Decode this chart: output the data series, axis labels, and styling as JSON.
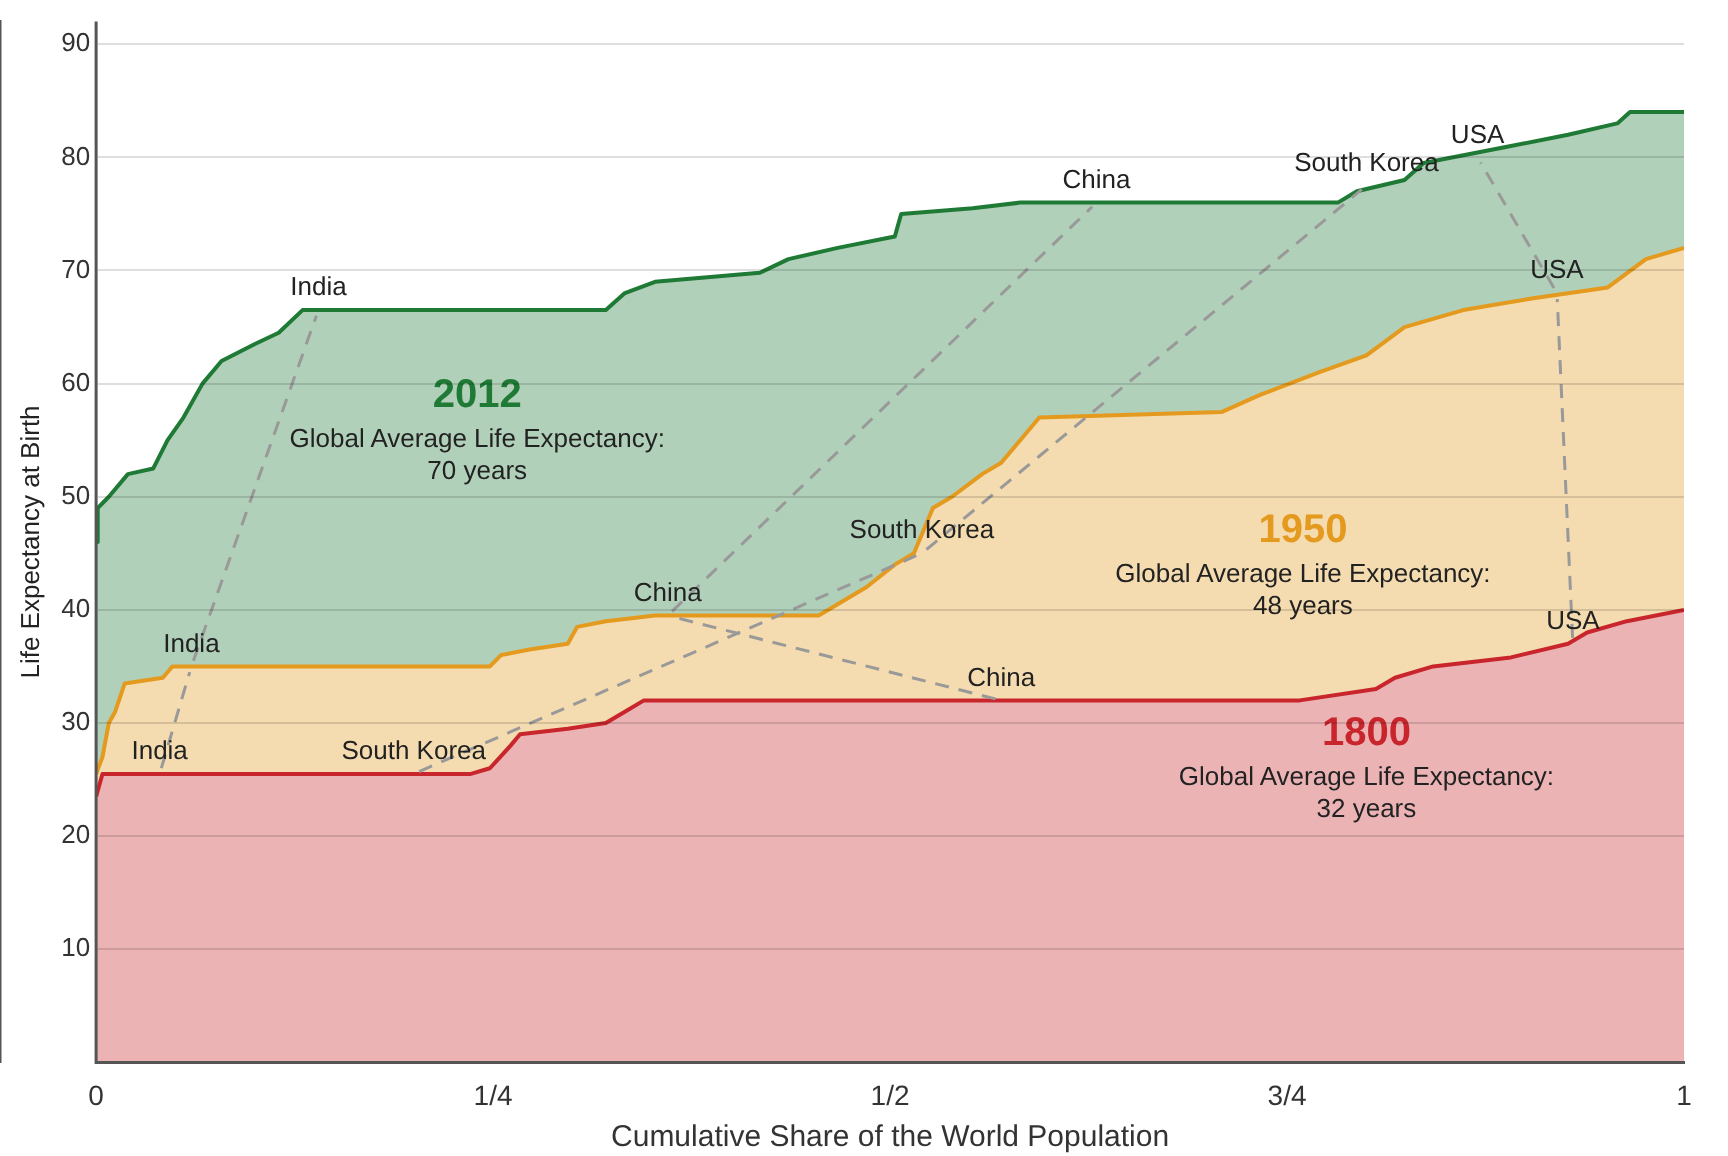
{
  "chart_data": {
    "type": "area",
    "xlabel": "Cumulative Share of the World Population",
    "ylabel": "Life Expectancy at Birth",
    "xlim": [
      0,
      1
    ],
    "xticks": [
      0,
      {
        "value": 0.25,
        "label": "1/4"
      },
      {
        "value": 0.5,
        "label": "1/2"
      },
      {
        "value": 0.75,
        "label": "3/4"
      },
      1
    ],
    "ylim": [
      0,
      92
    ],
    "yticks": [
      10,
      20,
      30,
      40,
      50,
      60,
      70,
      80,
      90
    ],
    "grid": "y",
    "line_style": "solid",
    "marker": "none",
    "series": [
      {
        "name": "2012",
        "color": "#1f7a36",
        "x": [
          0,
          0.001,
          0.008,
          0.02,
          0.036,
          0.045,
          0.055,
          0.067,
          0.079,
          0.1,
          0.115,
          0.13,
          0.321,
          0.333,
          0.352,
          0.418,
          0.436,
          0.467,
          0.503,
          0.507,
          0.552,
          0.582,
          0.782,
          0.794,
          0.824,
          0.836,
          0.891,
          0.927,
          0.958,
          0.966,
          1
        ],
        "values": [
          46,
          49,
          50,
          52,
          52.5,
          55,
          57,
          60,
          62,
          63.5,
          64.5,
          66.5,
          66.5,
          68,
          69,
          69.8,
          71,
          72,
          73,
          75,
          75.5,
          76,
          76,
          77,
          78,
          79.5,
          81,
          82,
          83,
          84,
          84
        ]
      },
      {
        "name": "1950",
        "color": "#e39a1e",
        "x": [
          0,
          0.004,
          0.008,
          0.012,
          0.018,
          0.042,
          0.048,
          0.248,
          0.255,
          0.273,
          0.297,
          0.303,
          0.321,
          0.352,
          0.455,
          0.467,
          0.485,
          0.503,
          0.515,
          0.521,
          0.527,
          0.539,
          0.558,
          0.57,
          0.582,
          0.594,
          0.709,
          0.733,
          0.77,
          0.8,
          0.824,
          0.861,
          0.903,
          0.952,
          0.976,
          1
        ],
        "values": [
          25.5,
          27,
          30,
          31,
          33.5,
          34,
          35,
          35,
          36,
          36.5,
          37,
          38.5,
          39,
          39.5,
          39.5,
          40.5,
          42,
          44,
          45,
          47,
          49,
          50,
          52,
          53,
          55,
          57,
          57.5,
          59,
          61,
          62.5,
          65,
          66.5,
          67.5,
          68.5,
          71,
          72
        ]
      },
      {
        "name": "1800",
        "color": "#c8262c",
        "x": [
          0,
          0.004,
          0.236,
          0.248,
          0.261,
          0.267,
          0.297,
          0.321,
          0.333,
          0.345,
          0.758,
          0.806,
          0.818,
          0.842,
          0.891,
          0.927,
          0.939,
          0.964,
          1
        ],
        "values": [
          23.5,
          25.5,
          25.5,
          26,
          28,
          29,
          29.5,
          30,
          31,
          32,
          32,
          33,
          34,
          35,
          35.8,
          37,
          38,
          39,
          40
        ]
      }
    ],
    "annotations": [
      "Global Average Life Expectancy:\n70 years",
      "Global Average Life Expectancy:\n48 years",
      "Global Average Life Expectancy:\n32 years",
      {
        "text": "India",
        "x": 0.04,
        "y": 25.5
      },
      {
        "text": "India",
        "x": 0.06,
        "y": 35
      },
      {
        "text": "India",
        "x": 0.14,
        "y": 66.5
      },
      {
        "text": "South Korea",
        "x": 0.2,
        "y": 25.5
      },
      {
        "text": "South Korea",
        "x": 0.52,
        "y": 45
      },
      {
        "text": "South Korea",
        "x": 0.8,
        "y": 77.5
      },
      {
        "text": "China",
        "x": 0.57,
        "y": 32
      },
      {
        "text": "China",
        "x": 0.36,
        "y": 39.5
      },
      {
        "text": "China",
        "x": 0.63,
        "y": 76
      },
      {
        "text": "USA",
        "x": 0.93,
        "y": 37
      },
      {
        "text": "USA",
        "x": 0.92,
        "y": 68
      },
      {
        "text": "USA",
        "x": 0.87,
        "y": 80
      }
    ]
  }
}
